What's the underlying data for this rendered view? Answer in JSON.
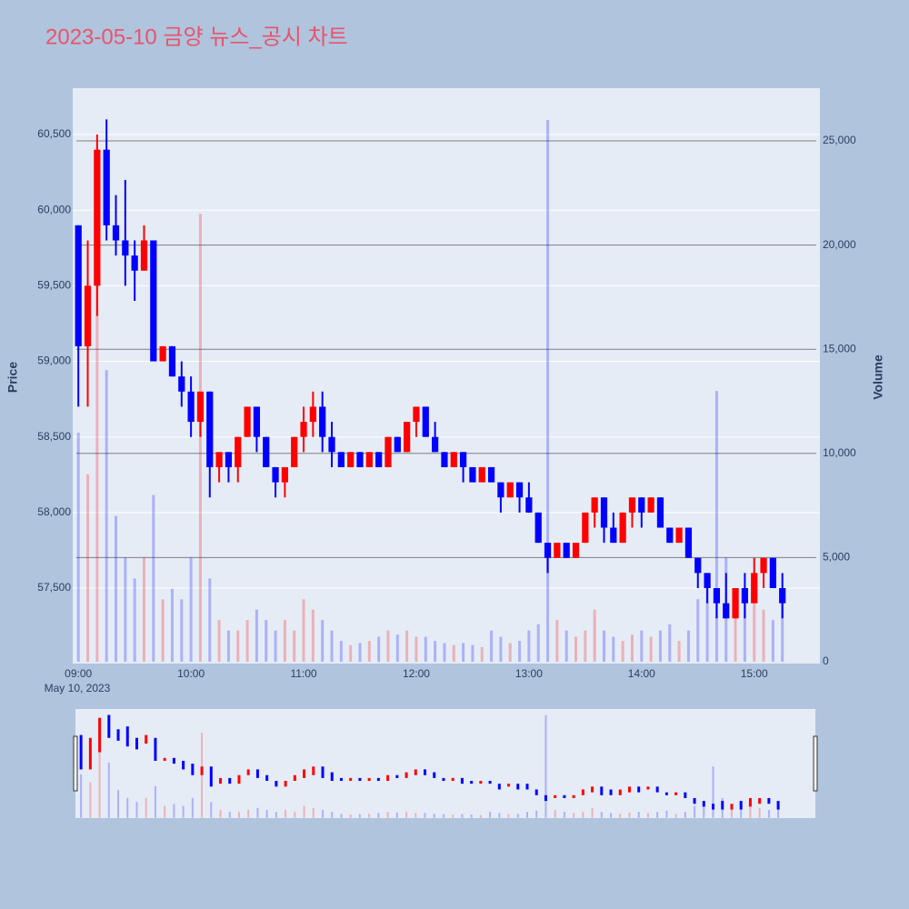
{
  "chart_data": {
    "type": "candlestick",
    "title": "2023-05-10 금양 뉴스_공시 차트",
    "y_title": "Price",
    "y2_title": "Volume",
    "x_date_label": "May 10, 2023",
    "increasing_color": "#ff0000",
    "decreasing_color": "#0000ff",
    "x": [
      "2023-05-10 09:00",
      "2023-05-10 09:05",
      "2023-05-10 09:10",
      "2023-05-10 09:15",
      "2023-05-10 09:20",
      "2023-05-10 09:25",
      "2023-05-10 09:30",
      "2023-05-10 09:35",
      "2023-05-10 09:40",
      "2023-05-10 09:45",
      "2023-05-10 09:50",
      "2023-05-10 09:55",
      "2023-05-10 10:00",
      "2023-05-10 10:05",
      "2023-05-10 10:10",
      "2023-05-10 10:15",
      "2023-05-10 10:20",
      "2023-05-10 10:25",
      "2023-05-10 10:30",
      "2023-05-10 10:35",
      "2023-05-10 10:40",
      "2023-05-10 10:45",
      "2023-05-10 10:50",
      "2023-05-10 10:55",
      "2023-05-10 11:00",
      "2023-05-10 11:05",
      "2023-05-10 11:10",
      "2023-05-10 11:15",
      "2023-05-10 11:20",
      "2023-05-10 11:25",
      "2023-05-10 11:30",
      "2023-05-10 11:35",
      "2023-05-10 11:40",
      "2023-05-10 11:45",
      "2023-05-10 11:50",
      "2023-05-10 11:55",
      "2023-05-10 12:00",
      "2023-05-10 12:05",
      "2023-05-10 12:10",
      "2023-05-10 12:15",
      "2023-05-10 12:20",
      "2023-05-10 12:25",
      "2023-05-10 12:30",
      "2023-05-10 12:35",
      "2023-05-10 12:40",
      "2023-05-10 12:45",
      "2023-05-10 12:50",
      "2023-05-10 12:55",
      "2023-05-10 13:00",
      "2023-05-10 13:05",
      "2023-05-10 13:10",
      "2023-05-10 13:15",
      "2023-05-10 13:20",
      "2023-05-10 13:25",
      "2023-05-10 13:30",
      "2023-05-10 13:35",
      "2023-05-10 13:40",
      "2023-05-10 13:45",
      "2023-05-10 13:50",
      "2023-05-10 13:55",
      "2023-05-10 14:00",
      "2023-05-10 14:05",
      "2023-05-10 14:10",
      "2023-05-10 14:15",
      "2023-05-10 14:20",
      "2023-05-10 14:25",
      "2023-05-10 14:30",
      "2023-05-10 14:35",
      "2023-05-10 14:40",
      "2023-05-10 14:45",
      "2023-05-10 14:50",
      "2023-05-10 14:55",
      "2023-05-10 15:00",
      "2023-05-10 15:05",
      "2023-05-10 15:10",
      "2023-05-10 15:15"
    ],
    "open": [
      59900,
      59100,
      59500,
      60400,
      59900,
      59800,
      59700,
      59600,
      59800,
      59000,
      59100,
      58900,
      58800,
      58600,
      58800,
      58300,
      58400,
      58300,
      58500,
      58700,
      58500,
      58300,
      58200,
      58300,
      58500,
      58600,
      58700,
      58500,
      58400,
      58300,
      58400,
      58300,
      58400,
      58300,
      58500,
      58400,
      58600,
      58700,
      58500,
      58400,
      58300,
      58400,
      58300,
      58200,
      58300,
      58200,
      58100,
      58200,
      58100,
      58000,
      57800,
      57700,
      57800,
      57700,
      57800,
      58000,
      58100,
      57900,
      57800,
      58000,
      58100,
      58000,
      58100,
      57900,
      57800,
      57900,
      57700,
      57600,
      57500,
      57400,
      57300,
      57500,
      57400,
      57600,
      57700,
      57500
    ],
    "high": [
      59900,
      59800,
      60500,
      60600,
      60100,
      60200,
      59800,
      59900,
      59800,
      59100,
      59100,
      59000,
      58900,
      58800,
      58800,
      58400,
      58400,
      58500,
      58700,
      58700,
      58500,
      58300,
      58300,
      58500,
      58700,
      58800,
      58800,
      58600,
      58400,
      58400,
      58400,
      58400,
      58400,
      58500,
      58500,
      58600,
      58700,
      58700,
      58600,
      58400,
      58400,
      58400,
      58300,
      58300,
      58300,
      58200,
      58200,
      58200,
      58200,
      58000,
      57800,
      57800,
      57800,
      57800,
      58000,
      58100,
      58100,
      58000,
      58000,
      58100,
      58100,
      58100,
      58100,
      57900,
      57900,
      57900,
      57700,
      57600,
      57500,
      57600,
      57500,
      57600,
      57700,
      57700,
      57700,
      57600
    ],
    "low": [
      58700,
      58700,
      59300,
      59800,
      59700,
      59500,
      59400,
      59600,
      59000,
      59000,
      58900,
      58700,
      58500,
      58500,
      58100,
      58200,
      58200,
      58200,
      58500,
      58400,
      58300,
      58100,
      58100,
      58300,
      58400,
      58500,
      58400,
      58300,
      58300,
      58300,
      58300,
      58300,
      58300,
      58300,
      58400,
      58400,
      58500,
      58500,
      58400,
      58300,
      58300,
      58200,
      58200,
      58200,
      58200,
      58000,
      58100,
      58000,
      58000,
      57800,
      57600,
      57700,
      57700,
      57700,
      57800,
      57900,
      57800,
      57800,
      57800,
      57900,
      57900,
      58000,
      57900,
      57800,
      57800,
      57700,
      57500,
      57400,
      57300,
      57300,
      57300,
      57300,
      57400,
      57500,
      57500,
      57300
    ],
    "close": [
      59100,
      59500,
      60400,
      59900,
      59800,
      59700,
      59600,
      59800,
      59000,
      59100,
      58900,
      58800,
      58600,
      58800,
      58300,
      58400,
      58300,
      58500,
      58700,
      58500,
      58300,
      58200,
      58300,
      58500,
      58600,
      58700,
      58500,
      58400,
      58300,
      58400,
      58300,
      58400,
      58300,
      58500,
      58400,
      58600,
      58700,
      58500,
      58400,
      58300,
      58400,
      58300,
      58200,
      58300,
      58200,
      58100,
      58200,
      58100,
      58000,
      57800,
      57700,
      57800,
      57700,
      57800,
      58000,
      58100,
      57900,
      57800,
      58000,
      58100,
      58000,
      58100,
      57900,
      57800,
      57900,
      57700,
      57600,
      57500,
      57400,
      57300,
      57500,
      57400,
      57600,
      57700,
      57500,
      57400
    ],
    "volume": [
      11000,
      9000,
      18000,
      14000,
      7000,
      5000,
      4000,
      5000,
      8000,
      3000,
      3500,
      3000,
      5000,
      21500,
      4000,
      2000,
      1500,
      1500,
      2000,
      2500,
      2000,
      1500,
      2000,
      1500,
      3000,
      2500,
      2000,
      1500,
      1000,
      800,
      900,
      1000,
      1200,
      1500,
      1300,
      1500,
      1200,
      1200,
      1000,
      900,
      800,
      900,
      800,
      700,
      1500,
      1200,
      900,
      1000,
      1500,
      1800,
      26000,
      2000,
      1500,
      1200,
      1500,
      2500,
      1500,
      1200,
      1000,
      1300,
      1500,
      1200,
      1500,
      1800,
      1000,
      1500,
      3000,
      3500,
      13000,
      5000,
      2500,
      3000,
      3500,
      2500,
      2000,
      3000
    ],
    "xlim": [
      "2023-05-10 08:57",
      "2023-05-10 15:35"
    ],
    "xticks": [
      {
        "value": "2023-05-10 09:00",
        "label": "09:00"
      },
      {
        "value": "2023-05-10 10:00",
        "label": "10:00"
      },
      {
        "value": "2023-05-10 11:00",
        "label": "11:00"
      },
      {
        "value": "2023-05-10 12:00",
        "label": "12:00"
      },
      {
        "value": "2023-05-10 13:00",
        "label": "13:00"
      },
      {
        "value": "2023-05-10 14:00",
        "label": "14:00"
      },
      {
        "value": "2023-05-10 15:00",
        "label": "15:00"
      }
    ],
    "ylim": [
      57001,
      60807
    ],
    "yticks": [
      {
        "value": 57500,
        "label": "57,500"
      },
      {
        "value": 58000,
        "label": "58,000"
      },
      {
        "value": 58500,
        "label": "58,500"
      },
      {
        "value": 59000,
        "label": "59,000"
      },
      {
        "value": 59500,
        "label": "59,500"
      },
      {
        "value": 60000,
        "label": "60,000"
      },
      {
        "value": 60500,
        "label": "60,500"
      }
    ],
    "y2lim": [
      -87,
      27530
    ],
    "y2ticks": [
      0,
      {
        "value": 5000,
        "label": "5,000"
      },
      {
        "value": 10000,
        "label": "10,000"
      },
      {
        "value": 15000,
        "label": "15,000"
      },
      {
        "value": 20000,
        "label": "20,000"
      },
      {
        "value": 25000,
        "label": "25,000"
      }
    ],
    "grid": true,
    "range_slider": true
  }
}
